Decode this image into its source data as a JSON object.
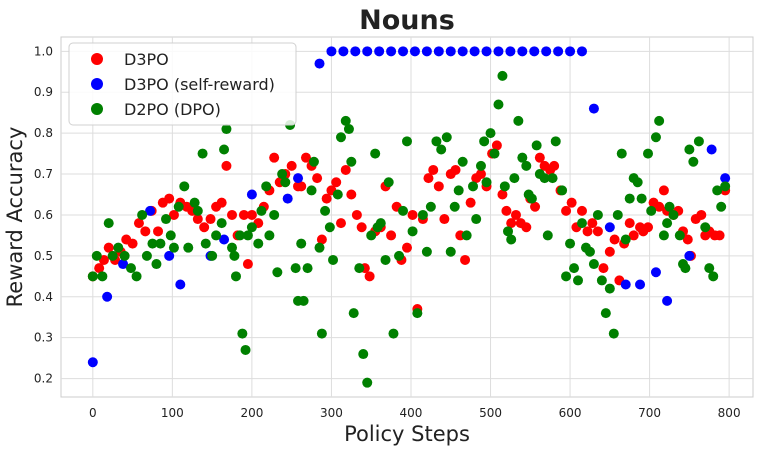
{
  "chart_data": {
    "type": "scatter",
    "title": "Nouns",
    "xlabel": "Policy Steps",
    "ylabel": "Reward Accuracy",
    "xlim": [
      -40,
      830
    ],
    "ylim": [
      0.155,
      1.035
    ],
    "xticks": [
      0,
      100,
      200,
      300,
      400,
      500,
      600,
      700,
      800
    ],
    "yticks": [
      0.2,
      0.3,
      0.4,
      0.5,
      0.6,
      0.7,
      0.8,
      0.9,
      1.0
    ],
    "grid": true,
    "legend_position": "top-left",
    "series": [
      {
        "name": "D3PO",
        "color": "#ff0000",
        "points": [
          [
            0,
            0.45
          ],
          [
            8,
            0.47
          ],
          [
            14,
            0.49
          ],
          [
            20,
            0.52
          ],
          [
            28,
            0.49
          ],
          [
            35,
            0.51
          ],
          [
            42,
            0.54
          ],
          [
            50,
            0.53
          ],
          [
            58,
            0.58
          ],
          [
            66,
            0.56
          ],
          [
            74,
            0.61
          ],
          [
            82,
            0.56
          ],
          [
            88,
            0.63
          ],
          [
            96,
            0.64
          ],
          [
            102,
            0.6
          ],
          [
            110,
            0.63
          ],
          [
            118,
            0.62
          ],
          [
            125,
            0.61
          ],
          [
            132,
            0.59
          ],
          [
            140,
            0.57
          ],
          [
            148,
            0.59
          ],
          [
            155,
            0.62
          ],
          [
            162,
            0.63
          ],
          [
            168,
            0.72
          ],
          [
            175,
            0.6
          ],
          [
            182,
            0.55
          ],
          [
            190,
            0.6
          ],
          [
            195,
            0.48
          ],
          [
            200,
            0.6
          ],
          [
            208,
            0.58
          ],
          [
            215,
            0.62
          ],
          [
            222,
            0.66
          ],
          [
            228,
            0.74
          ],
          [
            235,
            0.68
          ],
          [
            242,
            0.7
          ],
          [
            250,
            0.72
          ],
          [
            258,
            0.67
          ],
          [
            262,
            0.67
          ],
          [
            268,
            0.74
          ],
          [
            275,
            0.72
          ],
          [
            282,
            0.69
          ],
          [
            288,
            0.54
          ],
          [
            294,
            0.64
          ],
          [
            300,
            0.66
          ],
          [
            306,
            0.68
          ],
          [
            312,
            0.58
          ],
          [
            318,
            0.71
          ],
          [
            325,
            0.65
          ],
          [
            332,
            0.6
          ],
          [
            338,
            0.57
          ],
          [
            342,
            0.47
          ],
          [
            348,
            0.45
          ],
          [
            355,
            0.56
          ],
          [
            362,
            0.57
          ],
          [
            368,
            0.67
          ],
          [
            375,
            0.55
          ],
          [
            382,
            0.62
          ],
          [
            388,
            0.49
          ],
          [
            395,
            0.52
          ],
          [
            402,
            0.6
          ],
          [
            408,
            0.37
          ],
          [
            415,
            0.59
          ],
          [
            422,
            0.69
          ],
          [
            428,
            0.71
          ],
          [
            435,
            0.67
          ],
          [
            442,
            0.59
          ],
          [
            450,
            0.7
          ],
          [
            456,
            0.71
          ],
          [
            462,
            0.55
          ],
          [
            468,
            0.49
          ],
          [
            475,
            0.63
          ],
          [
            482,
            0.69
          ],
          [
            488,
            0.7
          ],
          [
            495,
            0.67
          ],
          [
            502,
            0.75
          ],
          [
            508,
            0.77
          ],
          [
            515,
            0.65
          ],
          [
            520,
            0.61
          ],
          [
            526,
            0.58
          ],
          [
            532,
            0.6
          ],
          [
            538,
            0.58
          ],
          [
            545,
            0.57
          ],
          [
            550,
            0.64
          ],
          [
            556,
            0.62
          ],
          [
            562,
            0.74
          ],
          [
            568,
            0.72
          ],
          [
            575,
            0.71
          ],
          [
            580,
            0.72
          ],
          [
            588,
            0.66
          ],
          [
            595,
            0.61
          ],
          [
            602,
            0.63
          ],
          [
            608,
            0.57
          ],
          [
            615,
            0.61
          ],
          [
            622,
            0.56
          ],
          [
            628,
            0.58
          ],
          [
            635,
            0.56
          ],
          [
            642,
            0.47
          ],
          [
            650,
            0.51
          ],
          [
            656,
            0.54
          ],
          [
            662,
            0.44
          ],
          [
            668,
            0.53
          ],
          [
            675,
            0.58
          ],
          [
            680,
            0.55
          ],
          [
            688,
            0.57
          ],
          [
            692,
            0.56
          ],
          [
            698,
            0.57
          ],
          [
            705,
            0.63
          ],
          [
            712,
            0.62
          ],
          [
            718,
            0.66
          ],
          [
            722,
            0.61
          ],
          [
            730,
            0.6
          ],
          [
            736,
            0.61
          ],
          [
            742,
            0.56
          ],
          [
            748,
            0.54
          ],
          [
            752,
            0.5
          ],
          [
            758,
            0.59
          ],
          [
            765,
            0.6
          ],
          [
            770,
            0.55
          ],
          [
            775,
            0.56
          ],
          [
            782,
            0.55
          ],
          [
            788,
            0.55
          ],
          [
            795,
            0.66
          ]
        ]
      },
      {
        "name": "D3PO (self-reward)",
        "color": "#0000ff",
        "points": [
          [
            0,
            0.24
          ],
          [
            18,
            0.4
          ],
          [
            38,
            0.48
          ],
          [
            72,
            0.61
          ],
          [
            96,
            0.5
          ],
          [
            110,
            0.43
          ],
          [
            148,
            0.5
          ],
          [
            165,
            0.54
          ],
          [
            200,
            0.65
          ],
          [
            245,
            0.64
          ],
          [
            258,
            0.69
          ],
          [
            285,
            0.97
          ],
          [
            300,
            1.0
          ],
          [
            315,
            1.0
          ],
          [
            330,
            1.0
          ],
          [
            345,
            1.0
          ],
          [
            360,
            1.0
          ],
          [
            375,
            1.0
          ],
          [
            390,
            1.0
          ],
          [
            405,
            1.0
          ],
          [
            420,
            1.0
          ],
          [
            435,
            1.0
          ],
          [
            450,
            1.0
          ],
          [
            465,
            1.0
          ],
          [
            480,
            1.0
          ],
          [
            495,
            1.0
          ],
          [
            510,
            1.0
          ],
          [
            525,
            1.0
          ],
          [
            540,
            1.0
          ],
          [
            555,
            1.0
          ],
          [
            570,
            1.0
          ],
          [
            585,
            1.0
          ],
          [
            600,
            1.0
          ],
          [
            615,
            1.0
          ],
          [
            630,
            0.86
          ],
          [
            650,
            0.57
          ],
          [
            670,
            0.43
          ],
          [
            688,
            0.43
          ],
          [
            708,
            0.46
          ],
          [
            722,
            0.39
          ],
          [
            750,
            0.5
          ],
          [
            778,
            0.76
          ],
          [
            795,
            0.69
          ]
        ]
      },
      {
        "name": "D2PO (DPO)",
        "color": "#008000",
        "points": [
          [
            0,
            0.45
          ],
          [
            5,
            0.5
          ],
          [
            12,
            0.45
          ],
          [
            20,
            0.58
          ],
          [
            25,
            0.5
          ],
          [
            32,
            0.52
          ],
          [
            40,
            0.5
          ],
          [
            48,
            0.47
          ],
          [
            55,
            0.45
          ],
          [
            62,
            0.6
          ],
          [
            68,
            0.5
          ],
          [
            75,
            0.53
          ],
          [
            80,
            0.48
          ],
          [
            85,
            0.53
          ],
          [
            92,
            0.59
          ],
          [
            98,
            0.55
          ],
          [
            102,
            0.52
          ],
          [
            108,
            0.62
          ],
          [
            115,
            0.67
          ],
          [
            120,
            0.52
          ],
          [
            128,
            0.63
          ],
          [
            132,
            0.61
          ],
          [
            138,
            0.75
          ],
          [
            142,
            0.53
          ],
          [
            150,
            0.5
          ],
          [
            155,
            0.55
          ],
          [
            162,
            0.58
          ],
          [
            165,
            0.76
          ],
          [
            168,
            0.81
          ],
          [
            175,
            0.52
          ],
          [
            178,
            0.5
          ],
          [
            180,
            0.45
          ],
          [
            185,
            0.55
          ],
          [
            188,
            0.31
          ],
          [
            192,
            0.27
          ],
          [
            195,
            0.55
          ],
          [
            200,
            0.57
          ],
          [
            208,
            0.53
          ],
          [
            212,
            0.61
          ],
          [
            218,
            0.67
          ],
          [
            222,
            0.55
          ],
          [
            228,
            0.6
          ],
          [
            232,
            0.46
          ],
          [
            238,
            0.7
          ],
          [
            242,
            0.68
          ],
          [
            248,
            0.82
          ],
          [
            255,
            0.47
          ],
          [
            258,
            0.39
          ],
          [
            262,
            0.53
          ],
          [
            265,
            0.39
          ],
          [
            270,
            0.47
          ],
          [
            275,
            0.66
          ],
          [
            278,
            0.73
          ],
          [
            285,
            0.52
          ],
          [
            288,
            0.31
          ],
          [
            292,
            0.61
          ],
          [
            298,
            0.57
          ],
          [
            302,
            0.49
          ],
          [
            308,
            0.65
          ],
          [
            312,
            0.79
          ],
          [
            318,
            0.83
          ],
          [
            322,
            0.81
          ],
          [
            325,
            0.73
          ],
          [
            328,
            0.36
          ],
          [
            335,
            0.47
          ],
          [
            340,
            0.26
          ],
          [
            345,
            0.19
          ],
          [
            350,
            0.55
          ],
          [
            355,
            0.75
          ],
          [
            358,
            0.57
          ],
          [
            362,
            0.58
          ],
          [
            368,
            0.49
          ],
          [
            372,
            0.68
          ],
          [
            378,
            0.31
          ],
          [
            385,
            0.5
          ],
          [
            390,
            0.61
          ],
          [
            395,
            0.78
          ],
          [
            402,
            0.56
          ],
          [
            408,
            0.36
          ],
          [
            415,
            0.6
          ],
          [
            420,
            0.51
          ],
          [
            425,
            0.62
          ],
          [
            432,
            0.78
          ],
          [
            438,
            0.76
          ],
          [
            445,
            0.79
          ],
          [
            450,
            0.51
          ],
          [
            455,
            0.62
          ],
          [
            460,
            0.66
          ],
          [
            465,
            0.73
          ],
          [
            470,
            0.55
          ],
          [
            478,
            0.67
          ],
          [
            482,
            0.59
          ],
          [
            488,
            0.72
          ],
          [
            492,
            0.78
          ],
          [
            495,
            0.68
          ],
          [
            500,
            0.8
          ],
          [
            505,
            0.75
          ],
          [
            510,
            0.87
          ],
          [
            515,
            0.94
          ],
          [
            518,
            0.67
          ],
          [
            522,
            0.56
          ],
          [
            526,
            0.54
          ],
          [
            530,
            0.69
          ],
          [
            535,
            0.83
          ],
          [
            540,
            0.74
          ],
          [
            545,
            0.72
          ],
          [
            548,
            0.65
          ],
          [
            552,
            0.64
          ],
          [
            558,
            0.77
          ],
          [
            562,
            0.7
          ],
          [
            568,
            0.69
          ],
          [
            572,
            0.55
          ],
          [
            578,
            0.69
          ],
          [
            582,
            0.78
          ],
          [
            590,
            0.66
          ],
          [
            595,
            0.45
          ],
          [
            600,
            0.53
          ],
          [
            605,
            0.47
          ],
          [
            610,
            0.44
          ],
          [
            615,
            0.58
          ],
          [
            620,
            0.52
          ],
          [
            625,
            0.51
          ],
          [
            630,
            0.48
          ],
          [
            635,
            0.6
          ],
          [
            640,
            0.44
          ],
          [
            645,
            0.36
          ],
          [
            650,
            0.42
          ],
          [
            655,
            0.31
          ],
          [
            660,
            0.6
          ],
          [
            665,
            0.75
          ],
          [
            670,
            0.54
          ],
          [
            675,
            0.64
          ],
          [
            680,
            0.69
          ],
          [
            685,
            0.68
          ],
          [
            690,
            0.64
          ],
          [
            698,
            0.75
          ],
          [
            702,
            0.61
          ],
          [
            708,
            0.79
          ],
          [
            712,
            0.83
          ],
          [
            718,
            0.55
          ],
          [
            722,
            0.58
          ],
          [
            725,
            0.62
          ],
          [
            730,
            0.6
          ],
          [
            738,
            0.55
          ],
          [
            742,
            0.48
          ],
          [
            745,
            0.47
          ],
          [
            750,
            0.76
          ],
          [
            755,
            0.73
          ],
          [
            762,
            0.78
          ],
          [
            770,
            0.57
          ],
          [
            775,
            0.47
          ],
          [
            780,
            0.45
          ],
          [
            785,
            0.66
          ],
          [
            790,
            0.62
          ],
          [
            795,
            0.67
          ]
        ]
      }
    ]
  }
}
